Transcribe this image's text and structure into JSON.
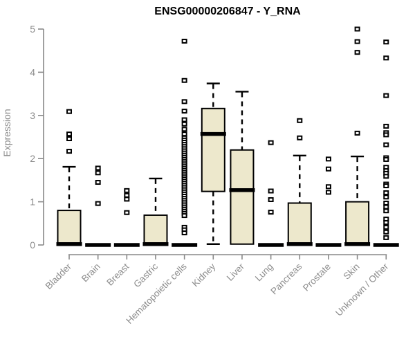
{
  "title": "ENSG00000206847 - Y_RNA",
  "chart_data": {
    "type": "boxplot",
    "title": "ENSG00000206847 - Y_RNA",
    "xlabel": "",
    "ylabel": "Expression",
    "ylim": [
      0,
      5
    ],
    "yticks": [
      "0",
      "1",
      "2",
      "3",
      "4",
      "5"
    ],
    "grid": false,
    "legend": null,
    "box_fill": "#EDE8CC",
    "box_stroke": "#000000",
    "median_color": "#000000",
    "whisker_color": "#000000",
    "outlier_color": "#000000",
    "axis_color": "#888888",
    "tick_label_color": "#8c8c8c",
    "title_color": "#000000",
    "categories": [
      "Bladder",
      "Brain",
      "Breast",
      "Gastric",
      "Hematopoietic cells",
      "Kidney",
      "Liver",
      "Lung",
      "Pancreas",
      "Prostate",
      "Skin",
      "Unknown / Other"
    ],
    "series": [
      {
        "name": "Bladder",
        "q1": 0,
        "median": 0.02,
        "q3": 0.8,
        "whisker_low": 0,
        "whisker_high": 1.81,
        "outliers": [
          3.09,
          2.57,
          2.46,
          2.17
        ]
      },
      {
        "name": "Brain",
        "q1": 0,
        "median": 0,
        "q3": 0,
        "whisker_low": 0,
        "whisker_high": 0,
        "outliers": [
          1.78,
          1.67,
          1.45,
          0.96
        ]
      },
      {
        "name": "Breast",
        "q1": 0,
        "median": 0,
        "q3": 0,
        "whisker_low": 0,
        "whisker_high": 0,
        "outliers": [
          1.26,
          1.15,
          1.06,
          0.75
        ]
      },
      {
        "name": "Gastric",
        "q1": 0,
        "median": 0.02,
        "q3": 0.69,
        "whisker_low": 0,
        "whisker_high": 1.54,
        "outliers": []
      },
      {
        "name": "Hematopoietic cells",
        "q1": 0,
        "median": 0,
        "q3": 0,
        "whisker_low": 0,
        "whisker_high": 0,
        "outliers": [
          4.72,
          3.81,
          3.32,
          3.1,
          2.9,
          2.8,
          2.68,
          2.57,
          2.48,
          2.43,
          2.38,
          2.33,
          2.28,
          2.23,
          2.18,
          2.13,
          2.08,
          2.03,
          1.98,
          1.93,
          1.88,
          1.83,
          1.78,
          1.73,
          1.68,
          1.63,
          1.58,
          1.53,
          1.48,
          1.43,
          1.38,
          1.33,
          1.28,
          1.23,
          1.18,
          1.13,
          1.08,
          1.03,
          0.98,
          0.93,
          0.88,
          0.83,
          0.78,
          0.73,
          0.68,
          0.41,
          0.35,
          0.28
        ]
      },
      {
        "name": "Kidney",
        "q1": 1.24,
        "median": 2.57,
        "q3": 3.16,
        "whisker_low": 0.02,
        "whisker_high": 3.74,
        "outliers": []
      },
      {
        "name": "Liver",
        "q1": 0.02,
        "median": 1.27,
        "q3": 2.2,
        "whisker_low": 0,
        "whisker_high": 3.55,
        "outliers": []
      },
      {
        "name": "Lung",
        "q1": 0,
        "median": 0,
        "q3": 0,
        "whisker_low": 0,
        "whisker_high": 0,
        "outliers": [
          2.37,
          1.25,
          1.05,
          0.76
        ]
      },
      {
        "name": "Pancreas",
        "q1": 0,
        "median": 0.02,
        "q3": 0.97,
        "whisker_low": 0,
        "whisker_high": 2.07,
        "outliers": [
          2.88,
          2.48
        ]
      },
      {
        "name": "Prostate",
        "q1": 0,
        "median": 0,
        "q3": 0,
        "whisker_low": 0,
        "whisker_high": 0,
        "outliers": [
          1.99,
          1.76,
          1.35,
          1.22
        ]
      },
      {
        "name": "Skin",
        "q1": 0,
        "median": 0.02,
        "q3": 1.0,
        "whisker_low": 0,
        "whisker_high": 2.05,
        "outliers": [
          5.0,
          4.71,
          4.46,
          2.59
        ]
      },
      {
        "name": "Unknown / Other",
        "q1": 0,
        "median": 0,
        "q3": 0,
        "whisker_low": 0,
        "whisker_high": 0,
        "outliers": [
          4.7,
          4.33,
          3.46,
          2.75,
          2.6,
          2.55,
          2.32,
          2.02,
          1.98,
          1.8,
          1.72,
          1.66,
          1.59,
          1.41,
          1.37,
          1.21,
          1.11,
          0.97,
          0.88,
          0.79,
          0.6,
          0.52,
          0.41,
          0.3,
          0.17
        ]
      }
    ]
  }
}
